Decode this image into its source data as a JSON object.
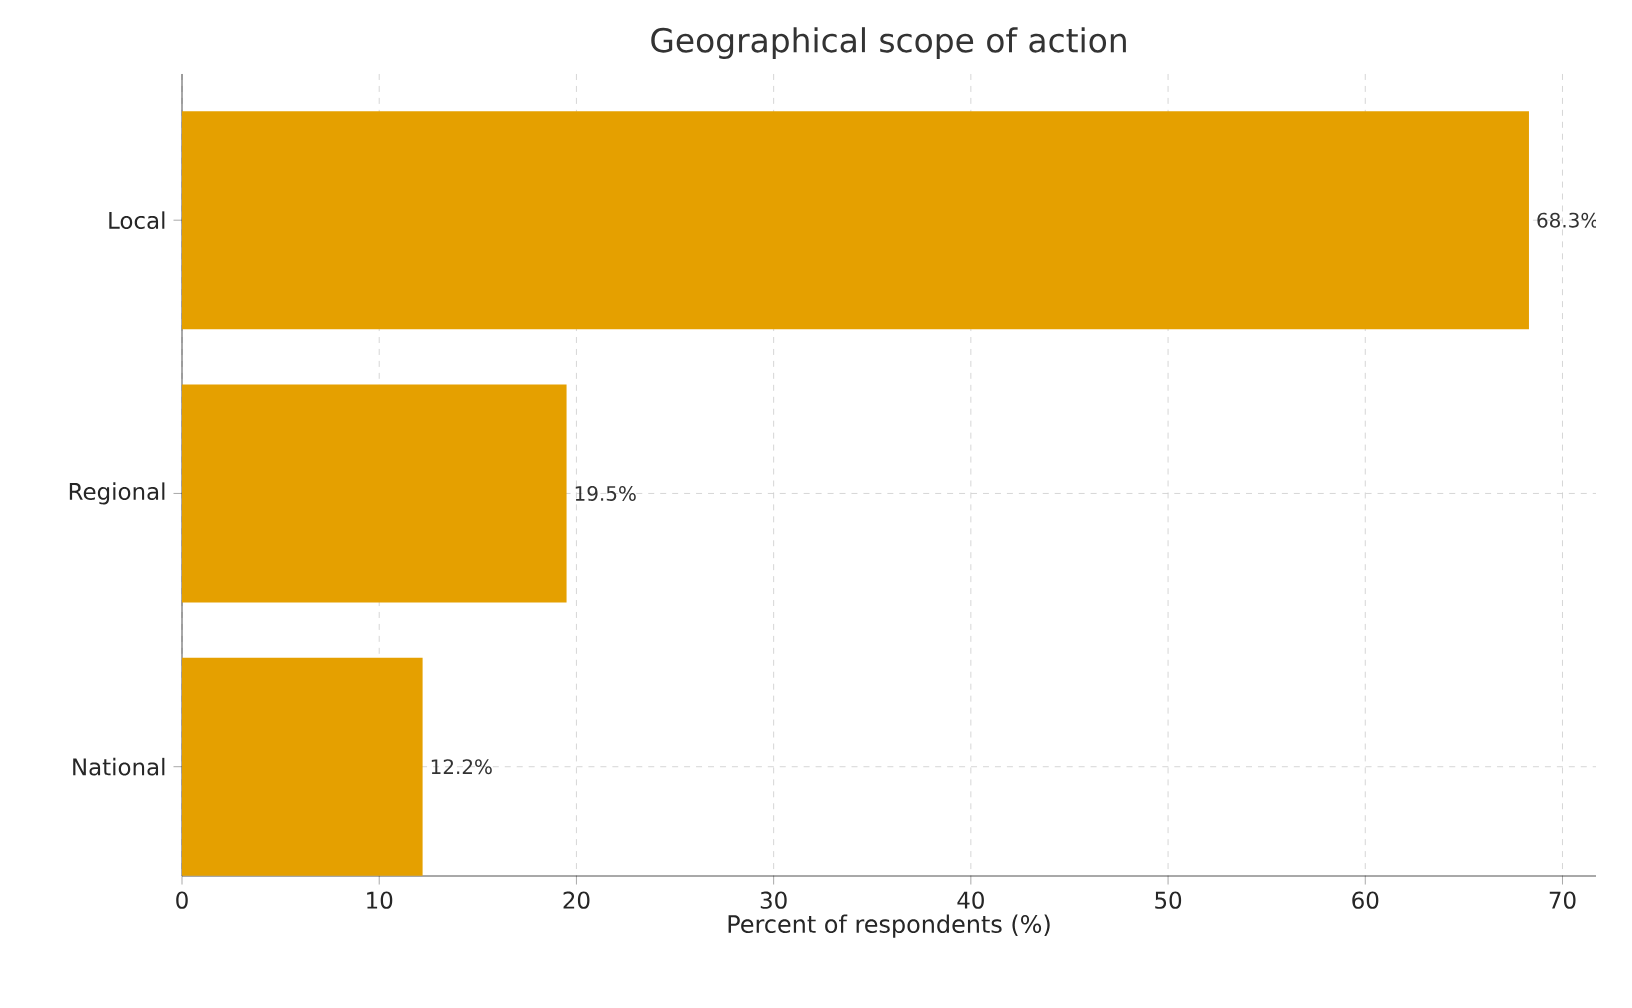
{
  "chart_data": {
    "type": "bar",
    "orientation": "horizontal",
    "title": "Geographical scope of action",
    "xlabel": "Percent of respondents (%)",
    "categories": [
      "Local",
      "Regional",
      "National"
    ],
    "values": [
      68.3,
      19.5,
      12.2
    ],
    "value_labels": [
      "68.3%",
      "19.5%",
      "12.2%"
    ],
    "color": "#e5a000",
    "xlim": [
      0,
      71.7
    ],
    "xticks": [
      0,
      10,
      20,
      30,
      40,
      50,
      60,
      70
    ],
    "grid": true
  }
}
